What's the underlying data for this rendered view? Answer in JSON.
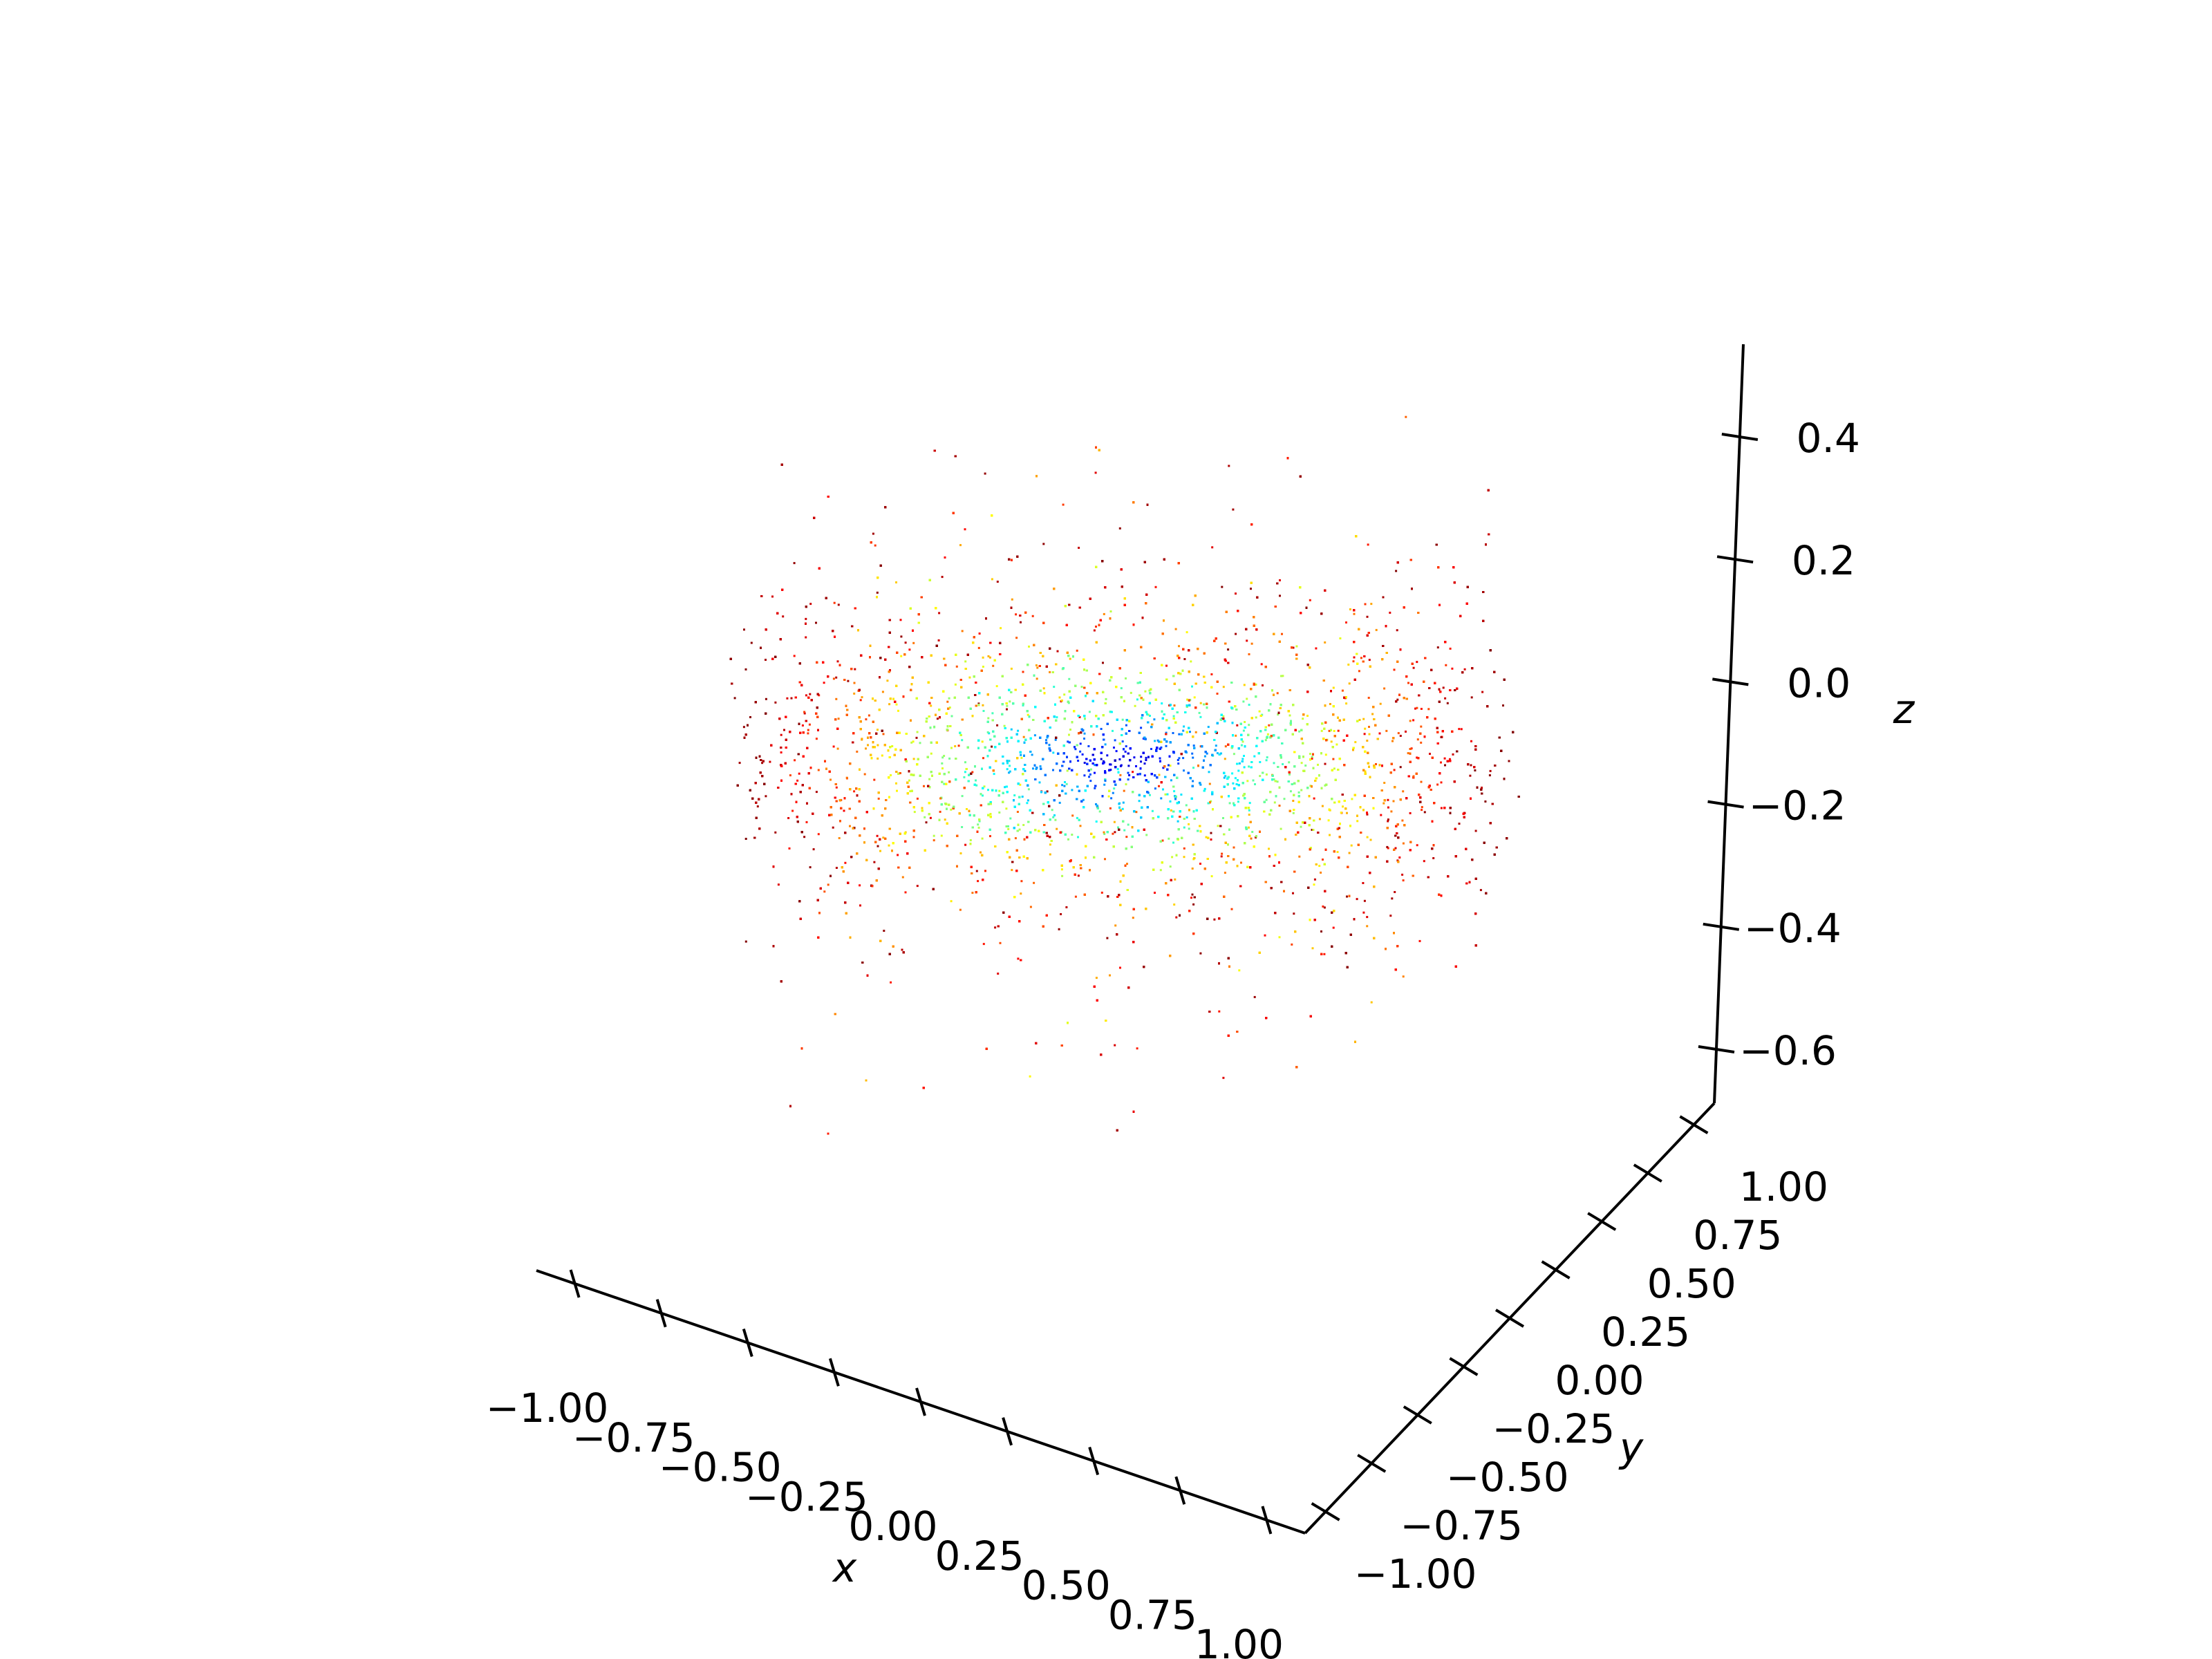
{
  "chart_data": {
    "type": "scatter",
    "title": "",
    "projection": "3d",
    "colormap": "jet",
    "axes": {
      "x": {
        "label": "x",
        "range": [
          -1.0,
          1.0
        ],
        "ticks": [
          -1.0,
          -0.75,
          -0.5,
          -0.25,
          0.0,
          0.25,
          0.5,
          0.75,
          1.0
        ],
        "tick_labels": [
          "−1.00",
          "−0.75",
          "−0.50",
          "−0.25",
          "0.00",
          "0.25",
          "0.50",
          "0.75",
          "1.00"
        ]
      },
      "y": {
        "label": "y",
        "range": [
          -1.0,
          1.0
        ],
        "ticks": [
          -1.0,
          -0.75,
          -0.5,
          -0.25,
          0.0,
          0.25,
          0.5,
          0.75,
          1.0
        ],
        "tick_labels": [
          "−1.00",
          "−0.75",
          "−0.50",
          "−0.25",
          "0.00",
          "0.25",
          "0.50",
          "0.75",
          "1.00"
        ]
      },
      "z": {
        "label": "z",
        "range": [
          -0.7,
          0.5
        ],
        "ticks": [
          -0.6,
          -0.4,
          -0.2,
          0.0,
          0.2,
          0.4
        ],
        "tick_labels": [
          "−0.6",
          "−0.4",
          "−0.2",
          "0.0",
          "0.2",
          "0.4"
        ]
      }
    },
    "grid": false,
    "points": {
      "distribution": "dense point cloud centered near the origin",
      "color_encoding": "radial distance from center: blue at center, cyan, green, yellow, orange, red at outer edge"
    }
  }
}
